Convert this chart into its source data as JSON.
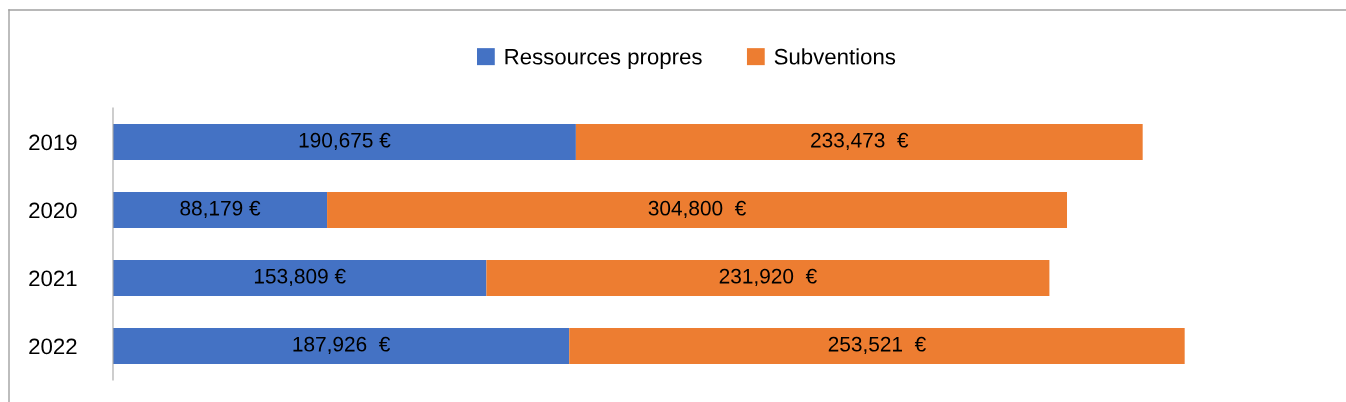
{
  "chart_data": {
    "type": "bar",
    "orientation": "horizontal",
    "stacked": true,
    "categories": [
      "2019",
      "2020",
      "2021",
      "2022"
    ],
    "series": [
      {
        "name": "Ressources propres",
        "color": "#4472c4",
        "values": [
          190675,
          88179,
          153809,
          187926
        ],
        "value_labels": [
          "190,675 €",
          "88,179 €",
          "153,809 €",
          "187,926  €"
        ]
      },
      {
        "name": "Subventions",
        "color": "#ed7d31",
        "values": [
          233473,
          304800,
          231920,
          253521
        ],
        "value_labels": [
          "233,473  €",
          "304,800  €",
          "231,920  €",
          "253,521  €"
        ]
      }
    ],
    "legend": "top",
    "grid": false,
    "tick_labels": "y"
  }
}
